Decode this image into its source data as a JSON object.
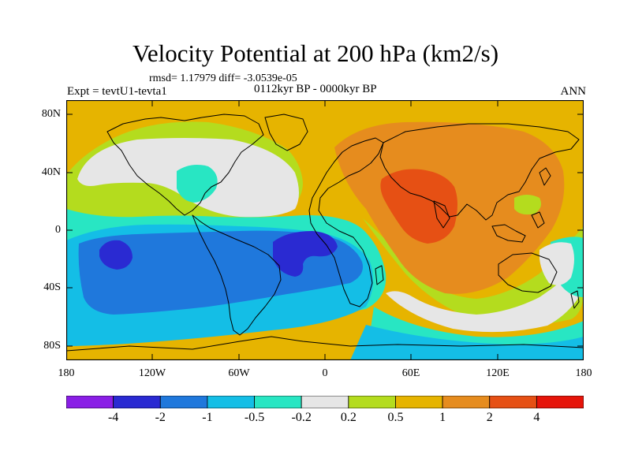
{
  "title": "Velocity Potential at 200 hPa (km2/s)",
  "stats": "rmsd= 1.17979 diff= -3.0539e-05",
  "experiment": "Expt = tevtU1-tevta1",
  "period": "0112kyr BP - 0000kyr BP",
  "season": "ANN",
  "lat_labels": [
    "80N",
    "40N",
    "0",
    "40S",
    "80S"
  ],
  "lon_labels": [
    "180",
    "120W",
    "60W",
    "0",
    "60E",
    "120E",
    "180"
  ],
  "colorbar": {
    "labels": [
      "-4",
      "-2",
      "-1",
      "-0.5",
      "-0.2",
      "0.2",
      "0.5",
      "1",
      "2",
      "4"
    ],
    "colors": [
      "#8a1ee6",
      "#2a2ad2",
      "#1f78dc",
      "#14bee6",
      "#28e6c3",
      "#e6e6e6",
      "#b4dc1e",
      "#e6b400",
      "#e68c1e",
      "#e65014",
      "#e6140a"
    ]
  },
  "colors": {
    "land_outline": "#000000",
    "frame": "#000000"
  }
}
